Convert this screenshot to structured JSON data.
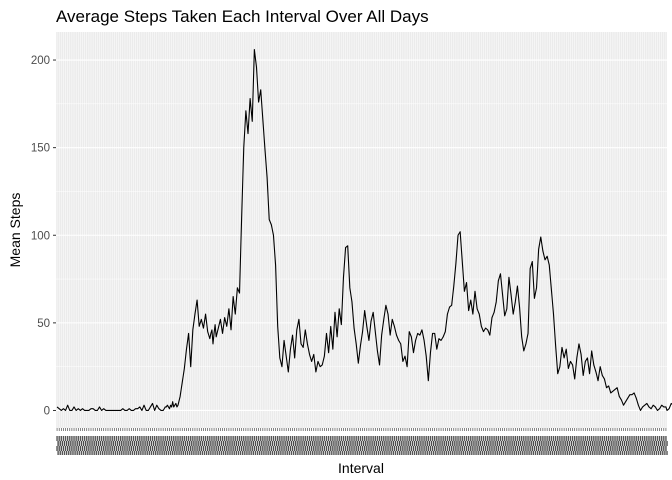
{
  "chart_data": {
    "type": "line",
    "title": "Average Steps Taken Each Interval Over All Days",
    "xlabel": "Interval",
    "ylabel": "Mean Steps",
    "ylim": [
      -10,
      216
    ],
    "y_ticks": [
      0,
      50,
      100,
      150,
      200
    ],
    "x_scale": "discrete",
    "x_tick_labels_overplotted": true,
    "grid": true,
    "background": "#ebebeb",
    "gridline_color": "#ffffff",
    "line_color": "#000000",
    "series": [
      {
        "interval_index": [
          0,
          4,
          6,
          8,
          10,
          12,
          14,
          16,
          18,
          20,
          22,
          24,
          26,
          28,
          30,
          32,
          34,
          36,
          38,
          40,
          42,
          44,
          46,
          48,
          50,
          52,
          54,
          56,
          58,
          60,
          62,
          64,
          66,
          68,
          70,
          72,
          74,
          76,
          78,
          80,
          82,
          84,
          86,
          88,
          90,
          92,
          94,
          96,
          98,
          100,
          101,
          102,
          103,
          104,
          105,
          106,
          107,
          108,
          109,
          110,
          111,
          112,
          113,
          114,
          116,
          118,
          120,
          122,
          124,
          126,
          128,
          130,
          132,
          134,
          136,
          138,
          140,
          142,
          144,
          145,
          146,
          147,
          148,
          149,
          150,
          152,
          154,
          156,
          158,
          160,
          162,
          164,
          166,
          168,
          170,
          172,
          174,
          176,
          178,
          180,
          182,
          184,
          186,
          188,
          190,
          192,
          194,
          196,
          198,
          200,
          202,
          204,
          206,
          208,
          210,
          212,
          214,
          216,
          218,
          220,
          222,
          224,
          226,
          228,
          230,
          232,
          234,
          236,
          238,
          240,
          242,
          244,
          246,
          248,
          250,
          252,
          254,
          256,
          258,
          260,
          262,
          264,
          266,
          268,
          270,
          272,
          274,
          276,
          278,
          280,
          282,
          284,
          286,
          288,
          290,
          292,
          294,
          296,
          298,
          300,
          302,
          304,
          306,
          308,
          310,
          312,
          314,
          316,
          318,
          320,
          322,
          324,
          326,
          328,
          330,
          332,
          334,
          336,
          338,
          340,
          342,
          344,
          346,
          348,
          350,
          352,
          354,
          356,
          358,
          360,
          362,
          364,
          366,
          368,
          370,
          372,
          374,
          376,
          378,
          380,
          382,
          384,
          386,
          388,
          390,
          392,
          394,
          396,
          398,
          400,
          402,
          404,
          406,
          408,
          410,
          412,
          414,
          416,
          418,
          420,
          422,
          424,
          426,
          428,
          430,
          432,
          434,
          436,
          438,
          440,
          442,
          444,
          446,
          448,
          450,
          452,
          454,
          456,
          458,
          460,
          462,
          464,
          466,
          468,
          470,
          472,
          474,
          476,
          478,
          480,
          482,
          484,
          486,
          488,
          490,
          492,
          494,
          496,
          498,
          500,
          502,
          504,
          506,
          508,
          510,
          512,
          514,
          516,
          518,
          520,
          522,
          524,
          526,
          528,
          530,
          532,
          534,
          536,
          538,
          540,
          542,
          544,
          546,
          548,
          550,
          552,
          554,
          556,
          558,
          560,
          562,
          564,
          566,
          568,
          570,
          572,
          574,
          575,
          577,
          579,
          581,
          583,
          585,
          587
        ],
        "values": [
          2,
          0,
          1,
          0,
          3,
          0,
          0,
          2,
          0,
          1,
          0,
          1,
          0,
          0,
          0,
          1,
          1,
          0,
          0,
          2,
          0,
          1,
          0,
          0,
          0,
          0,
          0,
          0,
          0,
          0,
          1,
          0,
          0,
          1,
          0,
          0,
          1,
          1,
          2,
          0,
          3,
          0,
          0,
          2,
          4,
          0,
          3,
          1,
          0,
          0,
          1,
          2,
          2,
          3,
          2,
          1,
          3,
          2,
          5,
          2,
          3,
          4,
          2,
          3,
          8,
          16,
          24,
          35,
          44,
          25,
          46,
          55,
          63,
          48,
          52,
          47,
          55,
          45,
          41,
          44,
          46,
          38,
          44,
          49,
          42,
          47,
          52,
          44,
          53,
          48,
          58,
          46,
          65,
          55,
          70,
          67,
          110,
          150,
          171,
          158,
          178,
          165,
          206,
          196,
          176,
          183,
          166,
          149,
          133,
          109,
          106,
          100,
          83,
          48,
          30,
          25,
          40,
          31,
          22,
          35,
          43,
          30,
          46,
          52,
          38,
          36,
          46,
          38,
          32,
          28,
          32,
          22,
          28,
          25,
          26,
          31,
          44,
          33,
          48,
          35,
          56,
          42,
          58,
          49,
          76,
          93,
          94,
          70,
          62,
          47,
          38,
          27,
          37,
          45,
          57,
          48,
          40,
          51,
          56,
          45,
          34,
          26,
          43,
          52,
          60,
          55,
          43,
          52,
          48,
          43,
          40,
          38,
          28,
          31,
          25,
          45,
          42,
          33,
          40,
          44,
          43,
          46,
          40,
          31,
          17,
          33,
          44,
          44,
          35,
          41,
          40,
          42,
          45,
          55,
          59,
          60,
          71,
          84,
          100,
          102,
          85,
          68,
          73,
          57,
          63,
          55,
          68,
          58,
          55,
          48,
          45,
          47,
          46,
          43,
          53,
          56,
          62,
          74,
          78,
          66,
          54,
          58,
          76,
          66,
          55,
          62,
          71,
          59,
          42,
          34,
          38,
          44,
          81,
          85,
          64,
          70,
          92,
          99,
          91,
          86,
          88,
          83,
          69,
          55,
          37,
          21,
          25,
          36,
          30,
          35,
          24,
          28,
          26,
          18,
          30,
          38,
          32,
          20,
          28,
          30,
          21,
          34,
          26,
          22,
          17,
          25,
          20,
          18,
          13,
          14,
          10,
          11,
          12,
          13,
          8,
          6,
          3,
          5,
          7,
          9,
          9,
          10,
          7,
          3,
          0,
          2,
          3,
          4,
          2,
          1,
          3,
          2,
          0,
          1,
          3,
          2,
          2,
          0,
          1,
          4,
          3,
          2,
          0
        ]
      }
    ]
  }
}
